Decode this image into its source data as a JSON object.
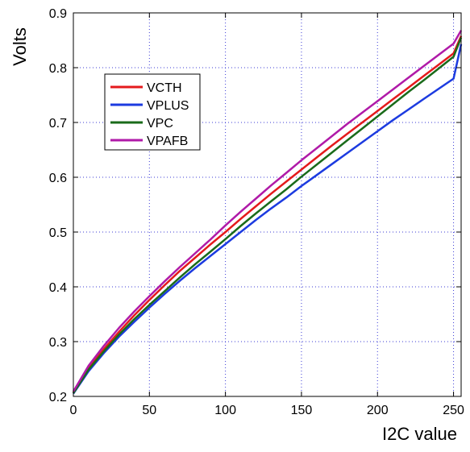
{
  "chart_data": {
    "type": "line",
    "title": "",
    "xlabel": "I2C value",
    "ylabel": "Volts",
    "xlim": [
      0,
      255
    ],
    "ylim": [
      0.2,
      0.9
    ],
    "x_ticks": [
      0,
      50,
      100,
      150,
      200,
      250
    ],
    "y_ticks": [
      0.2,
      0.3,
      0.4,
      0.5,
      0.6,
      0.7,
      0.8,
      0.9
    ],
    "x_tick_labels": [
      "0",
      "50",
      "100",
      "150",
      "200",
      "250"
    ],
    "y_tick_labels": [
      "0.2",
      "0.3",
      "0.4",
      "0.5",
      "0.6",
      "0.7",
      "0.8",
      "0.9"
    ],
    "grid": true,
    "legend_position": "upper-left",
    "x": [
      0,
      10,
      20,
      30,
      40,
      50,
      60,
      70,
      80,
      90,
      100,
      110,
      120,
      130,
      140,
      150,
      160,
      170,
      180,
      190,
      200,
      210,
      220,
      230,
      240,
      250,
      255
    ],
    "series": [
      {
        "name": "VCTH",
        "color": "#e41a1c",
        "values": [
          0.207,
          0.252,
          0.286,
          0.318,
          0.348,
          0.376,
          0.403,
          0.429,
          0.453,
          0.477,
          0.5,
          0.524,
          0.547,
          0.57,
          0.592,
          0.614,
          0.636,
          0.658,
          0.679,
          0.7,
          0.721,
          0.742,
          0.763,
          0.784,
          0.805,
          0.826,
          0.858
        ]
      },
      {
        "name": "VPLUS",
        "color": "#1c3be0",
        "values": [
          0.205,
          0.246,
          0.279,
          0.309,
          0.336,
          0.362,
          0.387,
          0.411,
          0.434,
          0.456,
          0.478,
          0.5,
          0.522,
          0.543,
          0.563,
          0.584,
          0.604,
          0.624,
          0.644,
          0.664,
          0.684,
          0.704,
          0.723,
          0.742,
          0.761,
          0.78,
          0.843
        ]
      },
      {
        "name": "VPC",
        "color": "#1a6b1a",
        "values": [
          0.206,
          0.249,
          0.282,
          0.313,
          0.341,
          0.367,
          0.392,
          0.417,
          0.441,
          0.464,
          0.487,
          0.511,
          0.534,
          0.556,
          0.578,
          0.601,
          0.623,
          0.645,
          0.667,
          0.689,
          0.711,
          0.733,
          0.755,
          0.776,
          0.798,
          0.82,
          0.855
        ]
      },
      {
        "name": "VPAFB",
        "color": "#b01aa8",
        "values": [
          0.209,
          0.256,
          0.292,
          0.325,
          0.355,
          0.383,
          0.41,
          0.436,
          0.461,
          0.486,
          0.512,
          0.537,
          0.561,
          0.585,
          0.608,
          0.631,
          0.653,
          0.675,
          0.697,
          0.718,
          0.739,
          0.76,
          0.781,
          0.802,
          0.823,
          0.844,
          0.868
        ]
      }
    ]
  }
}
